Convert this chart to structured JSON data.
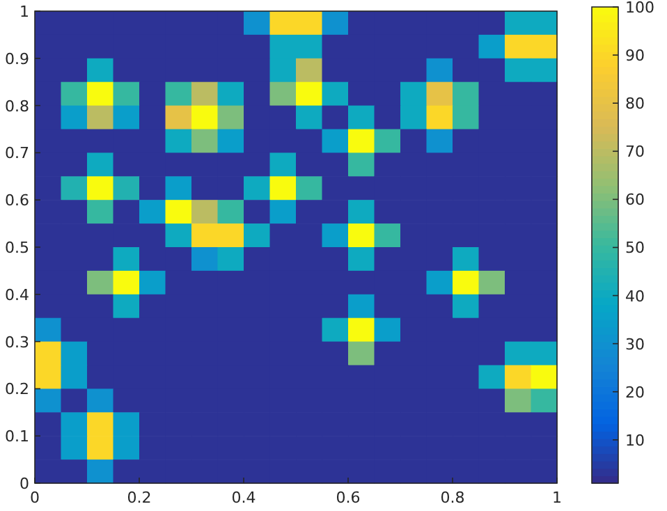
{
  "chart_data": {
    "type": "heatmap",
    "xlim": [
      0,
      1
    ],
    "ylim": [
      0,
      1
    ],
    "xticks": [
      0,
      0.2,
      0.4,
      0.6,
      0.8,
      1
    ],
    "yticks": [
      0,
      0.1,
      0.2,
      0.3,
      0.4,
      0.5,
      0.6,
      0.7,
      0.8,
      0.9,
      1
    ],
    "clim": [
      1,
      100
    ],
    "cticks": [
      10,
      20,
      30,
      40,
      50,
      60,
      70,
      80,
      90,
      100
    ],
    "cells": [
      [
        3,
        3,
        3,
        3,
        3,
        3,
        3,
        3,
        30,
        90,
        90,
        30,
        3,
        3,
        3,
        3,
        3,
        3,
        40,
        40
      ],
      [
        3,
        3,
        3,
        3,
        3,
        3,
        3,
        3,
        3,
        40,
        40,
        3,
        3,
        3,
        3,
        3,
        3,
        35,
        90,
        90
      ],
      [
        3,
        3,
        40,
        3,
        3,
        3,
        3,
        3,
        3,
        40,
        70,
        3,
        3,
        3,
        3,
        30,
        3,
        3,
        40,
        40
      ],
      [
        3,
        50,
        100,
        50,
        3,
        50,
        70,
        40,
        3,
        60,
        100,
        40,
        3,
        3,
        40,
        80,
        50,
        3,
        3,
        3
      ],
      [
        3,
        35,
        70,
        35,
        3,
        80,
        100,
        60,
        3,
        3,
        40,
        3,
        40,
        3,
        40,
        90,
        50,
        3,
        3,
        3
      ],
      [
        3,
        3,
        3,
        3,
        3,
        40,
        60,
        35,
        3,
        3,
        3,
        35,
        100,
        50,
        3,
        30,
        3,
        3,
        3,
        3
      ],
      [
        3,
        3,
        40,
        3,
        3,
        3,
        3,
        3,
        3,
        40,
        3,
        3,
        50,
        3,
        3,
        3,
        3,
        3,
        3,
        3
      ],
      [
        3,
        45,
        100,
        45,
        3,
        35,
        3,
        3,
        40,
        100,
        50,
        3,
        3,
        3,
        3,
        3,
        3,
        3,
        3,
        3
      ],
      [
        3,
        3,
        50,
        3,
        35,
        100,
        70,
        50,
        3,
        35,
        3,
        3,
        40,
        3,
        3,
        3,
        3,
        3,
        3,
        3
      ],
      [
        3,
        3,
        3,
        3,
        3,
        40,
        90,
        90,
        40,
        3,
        3,
        35,
        100,
        50,
        3,
        3,
        3,
        3,
        3,
        3
      ],
      [
        3,
        3,
        3,
        40,
        3,
        3,
        30,
        40,
        3,
        3,
        3,
        3,
        40,
        3,
        3,
        3,
        40,
        3,
        3,
        3
      ],
      [
        3,
        3,
        60,
        100,
        35,
        3,
        3,
        3,
        3,
        3,
        3,
        3,
        3,
        3,
        3,
        35,
        100,
        60,
        3,
        3
      ],
      [
        3,
        3,
        3,
        40,
        3,
        3,
        3,
        3,
        3,
        3,
        3,
        3,
        35,
        3,
        3,
        3,
        40,
        3,
        3,
        3
      ],
      [
        30,
        3,
        3,
        3,
        3,
        3,
        3,
        3,
        3,
        3,
        3,
        40,
        100,
        35,
        3,
        3,
        3,
        3,
        3,
        3
      ],
      [
        90,
        35,
        3,
        3,
        3,
        3,
        3,
        3,
        3,
        3,
        3,
        3,
        60,
        3,
        3,
        3,
        3,
        3,
        40,
        40
      ],
      [
        90,
        35,
        3,
        3,
        3,
        3,
        3,
        3,
        3,
        3,
        3,
        3,
        3,
        3,
        3,
        3,
        3,
        40,
        90,
        100
      ],
      [
        30,
        3,
        30,
        3,
        3,
        3,
        3,
        3,
        3,
        3,
        3,
        3,
        3,
        3,
        3,
        3,
        3,
        3,
        60,
        50
      ],
      [
        3,
        35,
        90,
        35,
        3,
        3,
        3,
        3,
        3,
        3,
        3,
        3,
        3,
        3,
        3,
        3,
        3,
        3,
        3,
        3
      ],
      [
        3,
        35,
        90,
        35,
        3,
        3,
        3,
        3,
        3,
        3,
        3,
        3,
        3,
        3,
        3,
        3,
        3,
        3,
        3,
        3
      ],
      [
        3,
        3,
        30,
        3,
        3,
        3,
        3,
        3,
        3,
        3,
        3,
        3,
        3,
        3,
        3,
        3,
        3,
        3,
        3,
        3
      ]
    ]
  }
}
